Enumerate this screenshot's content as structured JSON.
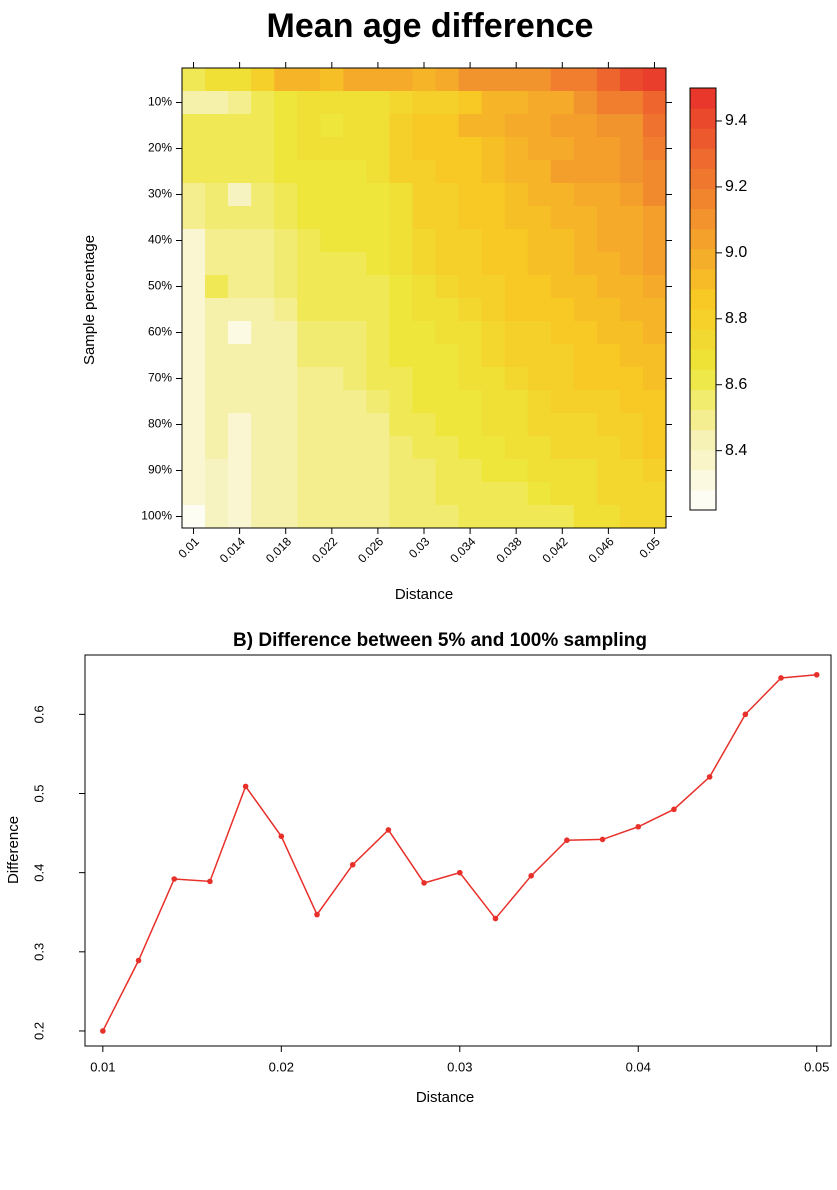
{
  "chart_data": [
    {
      "type": "heatmap",
      "title": "Mean age difference",
      "xlabel": "Distance",
      "ylabel": "Sample percentage",
      "categories": [
        "0.01",
        null,
        "0.014",
        null,
        "0.018",
        null,
        "0.022",
        null,
        "0.026",
        null,
        "0.03",
        null,
        "0.034",
        null,
        "0.038",
        null,
        "0.042",
        null,
        "0.046",
        null,
        "0.05"
      ],
      "y_categories": [
        null,
        "10%",
        null,
        "20%",
        null,
        "30%",
        null,
        "40%",
        null,
        "50%",
        null,
        "60%",
        null,
        "70%",
        null,
        "80%",
        null,
        "90%",
        null,
        "100%"
      ],
      "values": [
        [
          8.6,
          8.7,
          8.7,
          8.8,
          8.95,
          8.95,
          8.9,
          9.0,
          9.0,
          9.0,
          8.95,
          9.0,
          9.1,
          9.1,
          9.1,
          9.1,
          9.2,
          9.2,
          9.3,
          9.4,
          9.45
        ],
        [
          8.45,
          8.45,
          8.5,
          8.6,
          8.65,
          8.7,
          8.7,
          8.7,
          8.7,
          8.75,
          8.8,
          8.8,
          8.85,
          8.95,
          8.95,
          9.0,
          9.0,
          9.1,
          9.2,
          9.2,
          9.3
        ],
        [
          8.6,
          8.6,
          8.6,
          8.6,
          8.65,
          8.7,
          8.65,
          8.7,
          8.7,
          8.8,
          8.85,
          8.85,
          8.95,
          8.95,
          9.0,
          9.0,
          9.05,
          9.05,
          9.1,
          9.1,
          9.25
        ],
        [
          8.6,
          8.6,
          8.6,
          8.6,
          8.65,
          8.7,
          8.7,
          8.7,
          8.7,
          8.8,
          8.85,
          8.85,
          8.85,
          8.9,
          8.95,
          9.0,
          9.0,
          9.05,
          9.05,
          9.1,
          9.2
        ],
        [
          8.6,
          8.6,
          8.6,
          8.6,
          8.65,
          8.65,
          8.65,
          8.65,
          8.7,
          8.8,
          8.8,
          8.85,
          8.85,
          8.9,
          8.95,
          8.95,
          9.05,
          9.05,
          9.05,
          9.1,
          9.15
        ],
        [
          8.5,
          8.55,
          8.4,
          8.55,
          8.6,
          8.65,
          8.65,
          8.65,
          8.65,
          8.7,
          8.8,
          8.8,
          8.85,
          8.85,
          8.9,
          8.95,
          8.95,
          9.0,
          9.0,
          9.05,
          9.15
        ],
        [
          8.5,
          8.55,
          8.55,
          8.55,
          8.6,
          8.65,
          8.65,
          8.65,
          8.65,
          8.7,
          8.8,
          8.8,
          8.85,
          8.85,
          8.9,
          8.9,
          8.95,
          8.95,
          9.0,
          9.0,
          9.05
        ],
        [
          8.35,
          8.5,
          8.5,
          8.5,
          8.55,
          8.6,
          8.65,
          8.65,
          8.65,
          8.7,
          8.75,
          8.8,
          8.8,
          8.85,
          8.85,
          8.9,
          8.9,
          8.95,
          9.0,
          9.0,
          9.05
        ],
        [
          8.35,
          8.5,
          8.5,
          8.5,
          8.55,
          8.6,
          8.6,
          8.6,
          8.65,
          8.7,
          8.75,
          8.8,
          8.8,
          8.85,
          8.85,
          8.9,
          8.9,
          8.95,
          8.95,
          9.0,
          9.05
        ],
        [
          8.35,
          8.6,
          8.5,
          8.5,
          8.55,
          8.6,
          8.6,
          8.6,
          8.6,
          8.65,
          8.7,
          8.75,
          8.8,
          8.8,
          8.85,
          8.85,
          8.9,
          8.9,
          8.95,
          8.95,
          9.0
        ],
        [
          8.35,
          8.45,
          8.45,
          8.45,
          8.5,
          8.6,
          8.6,
          8.6,
          8.6,
          8.65,
          8.7,
          8.7,
          8.75,
          8.8,
          8.85,
          8.85,
          8.85,
          8.9,
          8.9,
          8.95,
          8.95
        ],
        [
          8.35,
          8.45,
          8.3,
          8.45,
          8.45,
          8.55,
          8.55,
          8.55,
          8.6,
          8.65,
          8.65,
          8.7,
          8.7,
          8.75,
          8.8,
          8.8,
          8.85,
          8.85,
          8.9,
          8.9,
          8.95
        ],
        [
          8.35,
          8.45,
          8.45,
          8.45,
          8.45,
          8.55,
          8.55,
          8.55,
          8.6,
          8.65,
          8.65,
          8.65,
          8.7,
          8.75,
          8.8,
          8.8,
          8.8,
          8.85,
          8.85,
          8.9,
          8.9
        ],
        [
          8.35,
          8.45,
          8.45,
          8.45,
          8.45,
          8.5,
          8.5,
          8.55,
          8.6,
          8.6,
          8.65,
          8.65,
          8.7,
          8.7,
          8.75,
          8.8,
          8.8,
          8.85,
          8.85,
          8.85,
          8.9
        ],
        [
          8.35,
          8.45,
          8.45,
          8.45,
          8.45,
          8.5,
          8.5,
          8.5,
          8.55,
          8.6,
          8.65,
          8.65,
          8.65,
          8.7,
          8.7,
          8.75,
          8.8,
          8.8,
          8.8,
          8.85,
          8.85
        ],
        [
          8.35,
          8.45,
          8.35,
          8.45,
          8.45,
          8.5,
          8.5,
          8.5,
          8.5,
          8.6,
          8.6,
          8.65,
          8.65,
          8.7,
          8.7,
          8.75,
          8.75,
          8.75,
          8.8,
          8.8,
          8.85
        ],
        [
          8.35,
          8.45,
          8.35,
          8.45,
          8.45,
          8.5,
          8.5,
          8.5,
          8.5,
          8.55,
          8.6,
          8.6,
          8.65,
          8.65,
          8.7,
          8.7,
          8.75,
          8.75,
          8.75,
          8.8,
          8.85
        ],
        [
          8.35,
          8.4,
          8.35,
          8.45,
          8.45,
          8.5,
          8.5,
          8.5,
          8.5,
          8.55,
          8.55,
          8.6,
          8.6,
          8.65,
          8.65,
          8.7,
          8.7,
          8.7,
          8.75,
          8.75,
          8.8
        ],
        [
          8.35,
          8.4,
          8.35,
          8.45,
          8.45,
          8.5,
          8.5,
          8.5,
          8.5,
          8.55,
          8.55,
          8.6,
          8.6,
          8.6,
          8.6,
          8.65,
          8.7,
          8.7,
          8.75,
          8.75,
          8.75
        ],
        [
          8.25,
          8.4,
          8.35,
          8.45,
          8.45,
          8.5,
          8.5,
          8.5,
          8.5,
          8.55,
          8.55,
          8.55,
          8.6,
          8.6,
          8.6,
          8.6,
          8.6,
          8.7,
          8.7,
          8.75,
          8.75
        ]
      ],
      "zlim": [
        8.22,
        9.5
      ],
      "zticks": [
        8.4,
        8.6,
        8.8,
        {
          "value": 9,
          "label": "9.0"
        },
        9.2,
        9.4
      ],
      "colormap": [
        "#ffffff",
        "#f6f1b4",
        "#eee63a",
        "#f8c824",
        "#f39a2d",
        "#ee6a2e",
        "#e8302a"
      ]
    },
    {
      "type": "line",
      "title": "B) Difference between 5% and 100% sampling",
      "xlabel": "Distance",
      "ylabel": "Difference",
      "x": [
        0.01,
        0.012,
        0.014,
        0.016,
        0.018,
        0.02,
        0.022,
        0.024,
        0.026,
        0.028,
        0.03,
        0.032,
        0.034,
        0.036,
        0.038,
        0.04,
        0.042,
        0.044,
        0.046,
        0.048,
        0.05
      ],
      "series": [
        {
          "name": "Difference",
          "color": "#e8302a",
          "values": [
            0.2,
            0.289,
            0.392,
            0.389,
            0.509,
            0.446,
            0.347,
            0.41,
            0.454,
            0.387,
            0.4,
            0.342,
            0.396,
            0.441,
            0.442,
            0.458,
            0.48,
            0.521,
            0.6,
            0.646,
            0.65
          ]
        }
      ],
      "xlim": [
        0.009,
        0.0508
      ],
      "ylim": [
        0.181,
        0.675
      ],
      "xticks": [
        0.01,
        0.02,
        0.03,
        0.04,
        0.05
      ],
      "yticks": [
        0.2,
        0.3,
        0.4,
        0.5,
        0.6
      ]
    }
  ]
}
